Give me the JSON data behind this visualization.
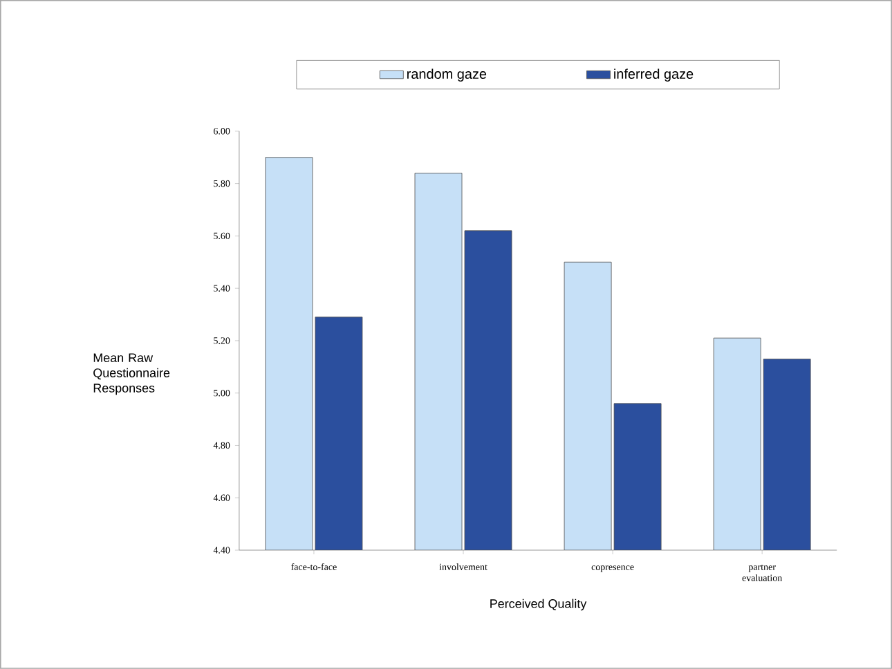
{
  "chart_data": {
    "type": "bar",
    "xlabel": "Perceived Quality",
    "ylabel": "Mean Raw Questionnaire Responses",
    "categories": [
      "face-to-face",
      "involvement",
      "copresence",
      "partner evaluation"
    ],
    "series": [
      {
        "name": "random gaze",
        "color": "#c6e0f7",
        "values": [
          5.9,
          5.84,
          5.5,
          5.21
        ]
      },
      {
        "name": "inferred gaze",
        "color": "#2b4f9e",
        "values": [
          5.29,
          5.62,
          4.96,
          5.13
        ]
      }
    ],
    "ylim": [
      4.4,
      6.0
    ],
    "yticks": [
      {
        "value": 4.4,
        "label": "4.40"
      },
      {
        "value": 4.6,
        "label": "4.60"
      },
      {
        "value": 4.8,
        "label": "4.80"
      },
      {
        "value": 5.0,
        "label": "5.00"
      },
      {
        "value": 5.2,
        "label": "5.20"
      },
      {
        "value": 5.4,
        "label": "5.40"
      },
      {
        "value": 5.6,
        "label": "5.60"
      },
      {
        "value": 5.8,
        "label": "5.80"
      },
      {
        "value": 6.0,
        "label": "6.00"
      }
    ],
    "legend": "top"
  }
}
